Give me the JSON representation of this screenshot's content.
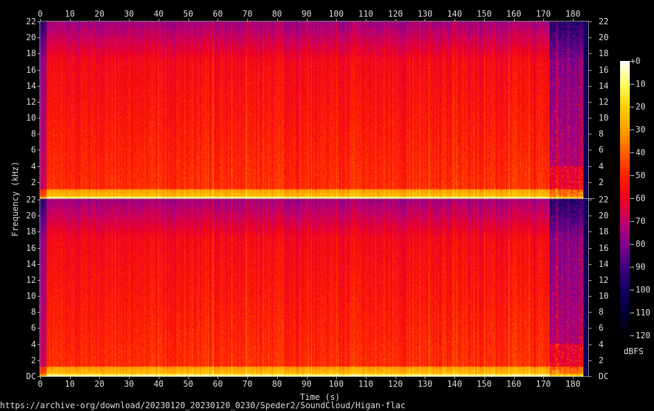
{
  "chart_data": {
    "type": "heatmap",
    "subtype": "spectrogram",
    "channels": 2,
    "xlabel": "Time (s)",
    "ylabel": "Frequency (kHz)",
    "xlim": [
      0,
      185
    ],
    "ylim_khz": [
      0,
      22
    ],
    "x_ticks": [
      "0",
      "10",
      "20",
      "30",
      "40",
      "50",
      "60",
      "70",
      "80",
      "90",
      "100",
      "110",
      "120",
      "130",
      "140",
      "150",
      "160",
      "170",
      "180"
    ],
    "y_ticks": [
      "DC",
      "2",
      "4",
      "6",
      "8",
      "10",
      "12",
      "14",
      "16",
      "18",
      "20",
      "22"
    ],
    "colorbar": {
      "label": "dBFS",
      "range": [
        -120,
        0
      ],
      "ticks": [
        "+0",
        "-10",
        "-20",
        "-30",
        "-40",
        "-50",
        "-60",
        "-70",
        "-80",
        "-90",
        "-100",
        "-110",
        "-120"
      ],
      "colors": [
        "#000000",
        "#000030",
        "#100060",
        "#400080",
        "#800090",
        "#c00070",
        "#f00020",
        "#ff2000",
        "#ff6000",
        "#ffa000",
        "#ffd000",
        "#ffff60",
        "#ffffff"
      ]
    },
    "description_levels": {
      "low_freq_dbfs": -20,
      "mid_freq_dbfs": -50,
      "high_freq_dbfs": -75
    }
  },
  "footer": {
    "source": "https://archive·org/download/20230120_20230120_0230/Speder2/SoundCloud/Higan·flac"
  }
}
